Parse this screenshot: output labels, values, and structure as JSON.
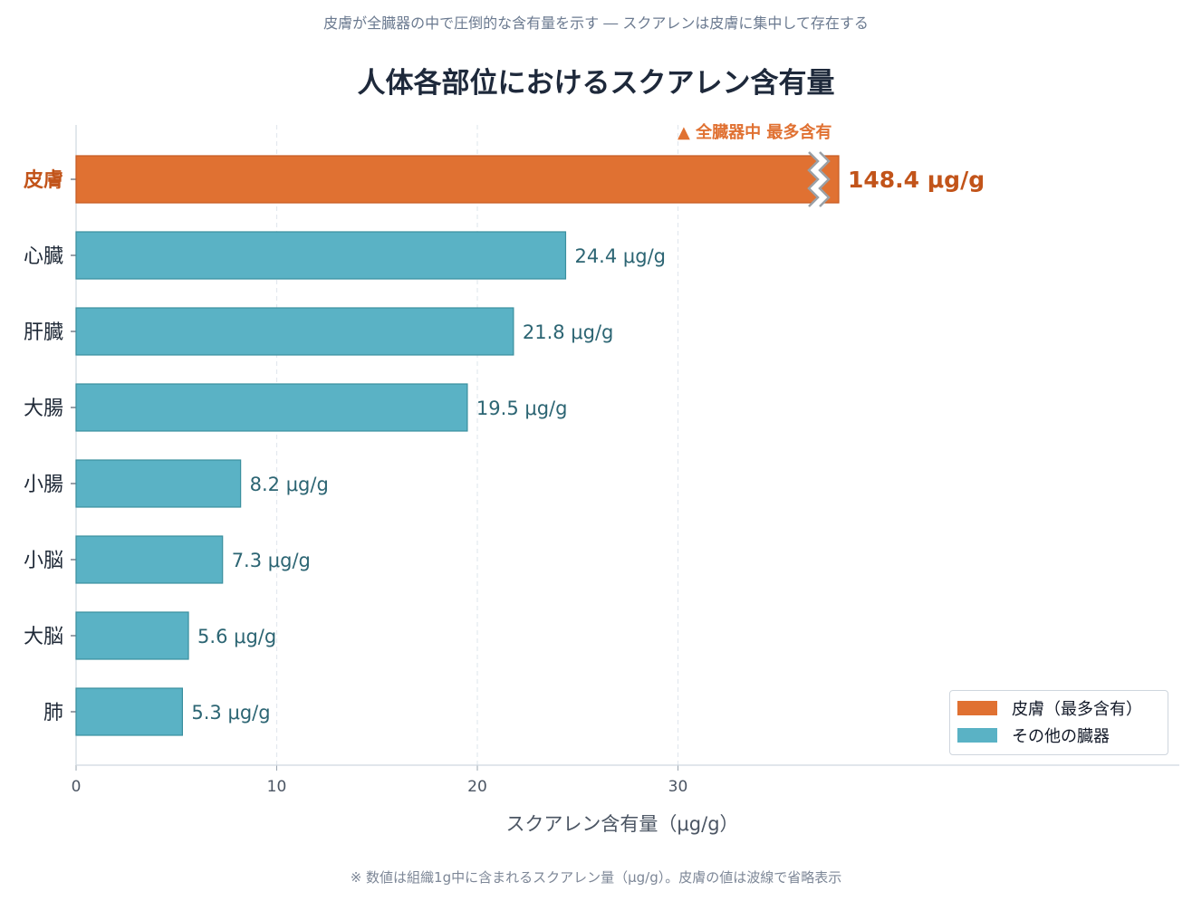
{
  "chart_data": {
    "type": "bar",
    "orientation": "horizontal",
    "subtitle": "皮膚が全臓器の中で圧倒的な含有量を示す ― スクアレンは皮膚に集中して存在する",
    "title": "人体各部位におけるスクアレン含有量",
    "xlabel": "スクアレン含有量（μg/g）",
    "ylabel": "",
    "xlim": [
      0,
      55
    ],
    "xticks": [
      "0",
      "10",
      "20",
      "30"
    ],
    "axis_break": true,
    "categories": [
      "皮膚",
      "心臓",
      "肝臓",
      "大腸",
      "小腸",
      "小脳",
      "大脳",
      "肺"
    ],
    "values": [
      148.4,
      24.4,
      21.8,
      19.5,
      8.2,
      7.3,
      5.6,
      5.3
    ],
    "value_labels": [
      "148.4 μg/g",
      "24.4 μg/g",
      "21.8 μg/g",
      "19.5 μg/g",
      "8.2 μg/g",
      "7.3 μg/g",
      "5.6 μg/g",
      "5.3 μg/g"
    ],
    "annotation": "▲ 全臓器中 最多含有",
    "legend": {
      "position": "bottom-right",
      "items": [
        {
          "label": "皮膚（最多含有）",
          "color": "#e07132"
        },
        {
          "label": "その他の臓器",
          "color": "#5ab2c5"
        }
      ]
    },
    "colors": {
      "highlight": "#e07132",
      "highlight_text": "#c2541a",
      "bar": "#5ab2c5",
      "bar_edge": "#3a8f9e",
      "value_text": "#2c6573"
    },
    "grid": "vertical dashed",
    "footnote": "※ 数値は組織1g中に含まれるスクアレン量（μg/g）。皮膚の値は波線で省略表示"
  }
}
